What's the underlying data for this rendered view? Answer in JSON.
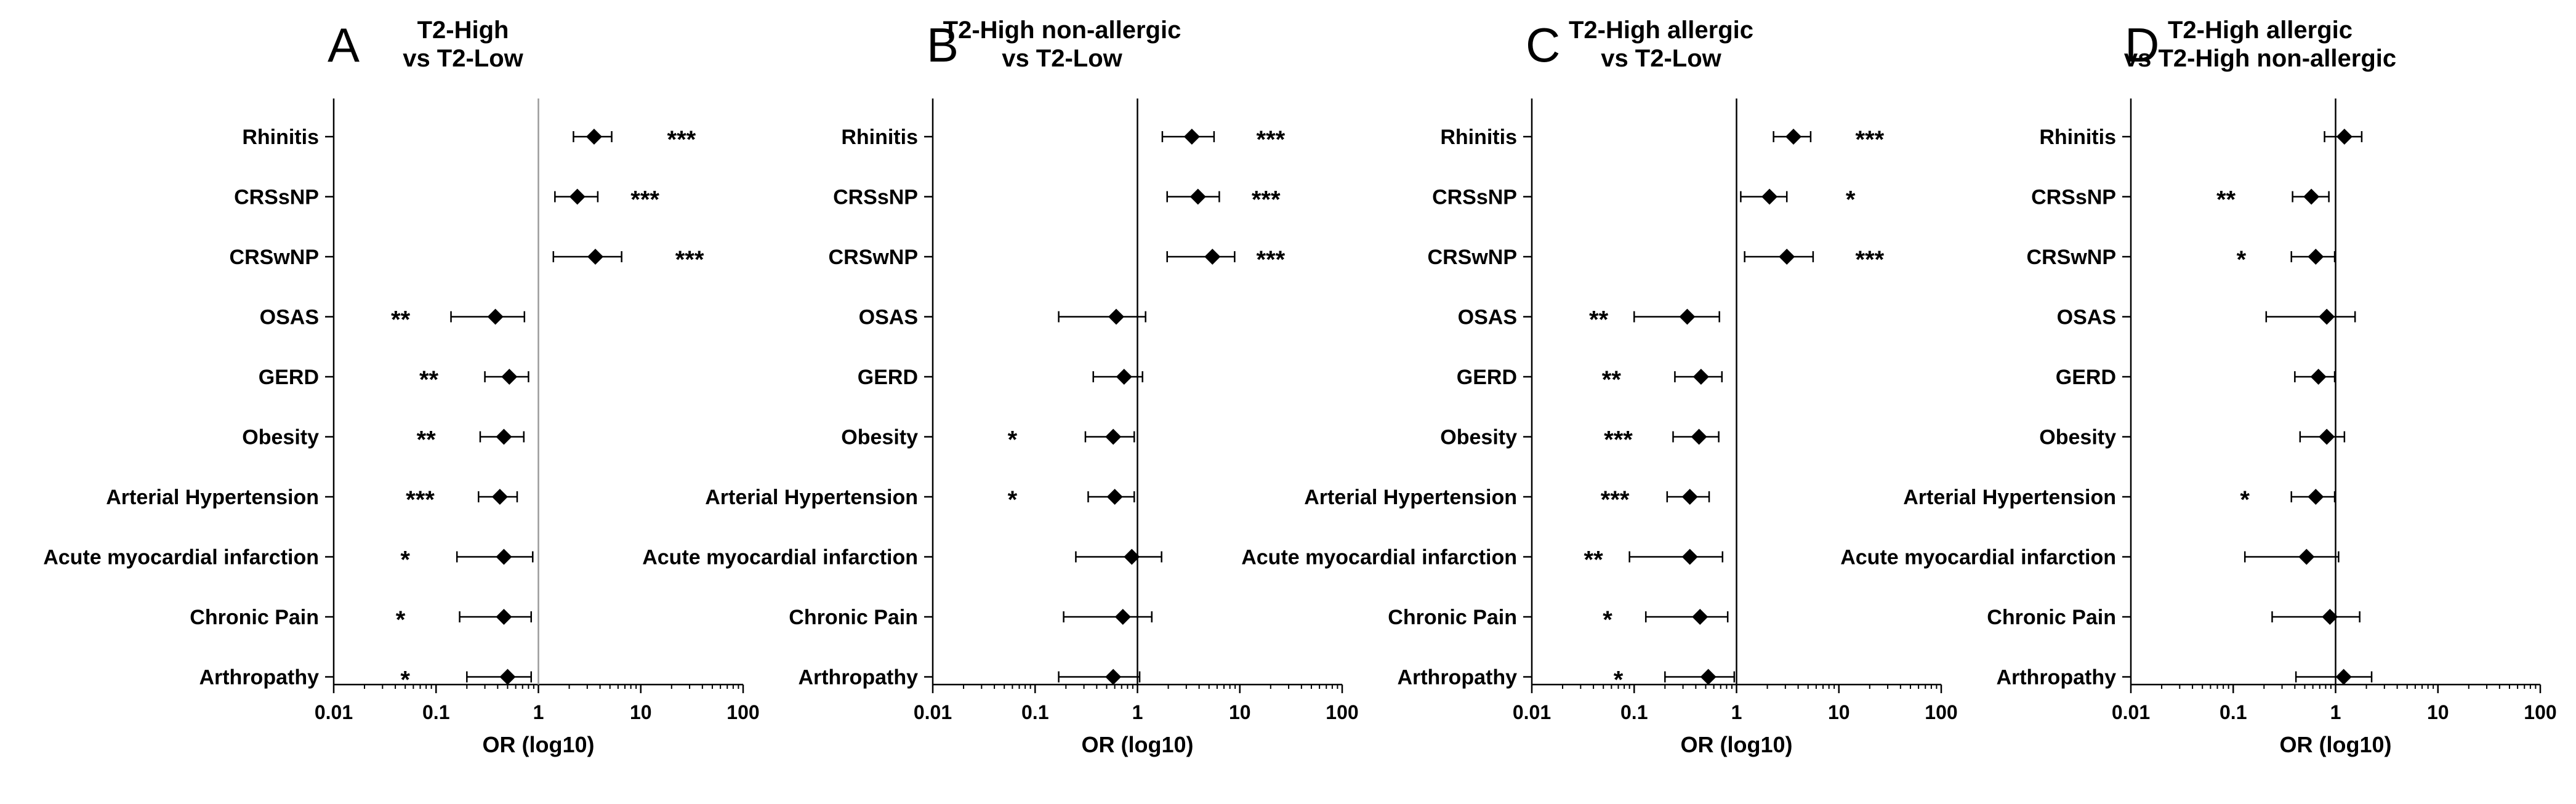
{
  "chart_data": [
    {
      "type": "scatter",
      "panel_label": "A",
      "title": [
        "T2-High",
        "vs T2-Low"
      ],
      "xlabel": "OR (log10)",
      "xscale": "log",
      "xlim": [
        0.01,
        100
      ],
      "xticks": [
        "0.01",
        "0.1",
        "1",
        "10",
        "100"
      ],
      "categories": [
        "Rhinitis",
        "CRSsNP",
        "CRSwNP",
        "OSAS",
        "GERD",
        "Obesity",
        "Arterial Hypertension",
        "Acute myocardial infarction",
        "Chronic Pain",
        "Arthropathy"
      ],
      "or": [
        3.5,
        2.4,
        3.6,
        0.38,
        0.52,
        0.46,
        0.42,
        0.46,
        0.46,
        0.5
      ],
      "ci_low": [
        2.2,
        1.45,
        1.4,
        0.14,
        0.3,
        0.27,
        0.26,
        0.16,
        0.17,
        0.2
      ],
      "ci_high": [
        5.2,
        3.8,
        6.5,
        0.73,
        0.8,
        0.72,
        0.62,
        0.88,
        0.85,
        0.85
      ],
      "significance": [
        "***",
        "***",
        "***",
        "**",
        "**",
        "**",
        "***",
        "*",
        "*",
        "*"
      ],
      "sig_x": [
        25,
        11,
        30,
        0.045,
        0.085,
        0.08,
        0.07,
        0.05,
        0.045,
        0.05
      ]
    },
    {
      "type": "scatter",
      "panel_label": "B",
      "title": [
        "T2-High non-allergic",
        "vs T2-Low"
      ],
      "xlabel": "OR (log10)",
      "xscale": "log",
      "xlim": [
        0.01,
        100
      ],
      "xticks": [
        "0.01",
        "0.1",
        "1",
        "10",
        "100"
      ],
      "categories": [
        "Rhinitis",
        "CRSsNP",
        "CRSwNP",
        "OSAS",
        "GERD",
        "Obesity",
        "Arterial Hypertension",
        "Acute myocardial infarction",
        "Chronic Pain",
        "Arthropathy"
      ],
      "or": [
        3.4,
        3.9,
        5.4,
        0.62,
        0.74,
        0.58,
        0.6,
        0.88,
        0.72,
        0.58
      ],
      "ci_low": [
        1.75,
        1.95,
        1.95,
        0.17,
        0.37,
        0.31,
        0.33,
        0.25,
        0.19,
        0.17
      ],
      "ci_high": [
        5.6,
        6.3,
        8.9,
        1.2,
        1.12,
        0.93,
        0.93,
        1.72,
        1.38,
        1.05
      ],
      "significance": [
        "***",
        "***",
        "***",
        "",
        "",
        "*",
        "*",
        "",
        "",
        ""
      ],
      "sig_x": [
        20,
        18,
        20,
        null,
        null,
        0.06,
        0.06,
        null,
        null,
        null
      ]
    },
    {
      "type": "scatter",
      "panel_label": "C",
      "title": [
        "T2-High allergic",
        "vs T2-Low"
      ],
      "xlabel": "OR (log10)",
      "xscale": "log",
      "xlim": [
        0.01,
        100
      ],
      "xticks": [
        "0.01",
        "0.1",
        "1",
        "10",
        "100"
      ],
      "categories": [
        "Rhinitis",
        "CRSsNP",
        "CRSwNP",
        "OSAS",
        "GERD",
        "Obesity",
        "Arterial Hypertension",
        "Acute myocardial infarction",
        "Chronic Pain",
        "Arthropathy"
      ],
      "or": [
        3.6,
        2.1,
        3.1,
        0.33,
        0.45,
        0.43,
        0.35,
        0.35,
        0.44,
        0.53
      ],
      "ci_low": [
        2.3,
        1.1,
        1.2,
        0.1,
        0.25,
        0.24,
        0.21,
        0.09,
        0.13,
        0.2
      ],
      "ci_high": [
        5.3,
        3.1,
        5.6,
        0.68,
        0.72,
        0.67,
        0.54,
        0.73,
        0.82,
        0.95
      ],
      "significance": [
        "***",
        "*",
        "***",
        "**",
        "**",
        "***",
        "***",
        "**",
        "*",
        "*"
      ],
      "sig_x": [
        20,
        13,
        20,
        0.045,
        0.06,
        0.07,
        0.065,
        0.04,
        0.055,
        0.07
      ]
    },
    {
      "type": "scatter",
      "panel_label": "D",
      "title": [
        "T2-High allergic",
        "vs T2-High non-allergic"
      ],
      "xlabel": "OR (log10)",
      "xscale": "log",
      "xlim": [
        0.01,
        100
      ],
      "xticks": [
        "0.01",
        "0.1",
        "1",
        "10",
        "100"
      ],
      "categories": [
        "Rhinitis",
        "CRSsNP",
        "CRSwNP",
        "OSAS",
        "GERD",
        "Obesity",
        "Arterial Hypertension",
        "Acute myocardial infarction",
        "Chronic Pain",
        "Arthropathy"
      ],
      "or": [
        1.22,
        0.58,
        0.64,
        0.82,
        0.68,
        0.82,
        0.64,
        0.52,
        0.88,
        1.2
      ],
      "ci_low": [
        0.78,
        0.38,
        0.37,
        0.21,
        0.4,
        0.45,
        0.37,
        0.13,
        0.24,
        0.41
      ],
      "ci_high": [
        1.8,
        0.86,
        0.98,
        1.55,
        0.98,
        1.22,
        0.98,
        1.07,
        1.72,
        2.25
      ],
      "significance": [
        "",
        "**",
        "*",
        "",
        "",
        "",
        "*",
        "",
        "",
        ""
      ],
      "sig_x": [
        null,
        0.085,
        0.12,
        null,
        null,
        null,
        0.13,
        null,
        null,
        null
      ]
    }
  ]
}
